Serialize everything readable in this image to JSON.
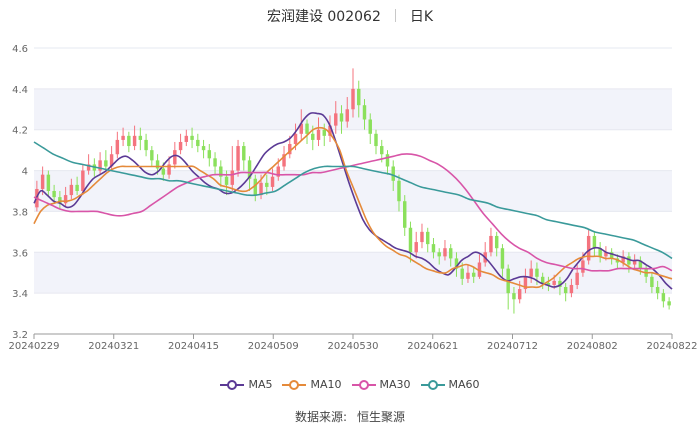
{
  "header": {
    "stock": "宏润建设 002062",
    "period": "日K"
  },
  "footer": {
    "source_label": "数据来源:",
    "source_name": "恒生聚源"
  },
  "colors": {
    "up": "#f4737e",
    "down": "#8be05c",
    "ma5": "#5b3a95",
    "ma10": "#e58a3a",
    "ma30": "#d855a8",
    "ma60": "#3a9a9a",
    "grid_band": "#f2f3fa",
    "axis": "#999999"
  },
  "chart_data": {
    "type": "candlestick",
    "x_ticks": [
      "20240229",
      "20240321",
      "20240415",
      "20240509",
      "20240530",
      "20240621",
      "20240712",
      "20240802",
      "20240822"
    ],
    "y_ticks": [
      3.2,
      3.4,
      3.6,
      3.8,
      4,
      4.2,
      4.4,
      4.6
    ],
    "ylim": [
      3.2,
      4.6
    ],
    "grid": true,
    "legend_position": "bottom",
    "candles": [
      [
        3.82,
        3.91,
        3.95,
        3.8
      ],
      [
        3.91,
        3.98,
        4.02,
        3.88
      ],
      [
        3.98,
        3.9,
        4.0,
        3.87
      ],
      [
        3.9,
        3.87,
        3.93,
        3.84
      ],
      [
        3.87,
        3.84,
        3.9,
        3.81
      ],
      [
        3.84,
        3.88,
        3.92,
        3.82
      ],
      [
        3.88,
        3.93,
        3.96,
        3.86
      ],
      [
        3.93,
        3.9,
        3.97,
        3.88
      ],
      [
        3.9,
        4.0,
        4.03,
        3.88
      ],
      [
        4.0,
        4.03,
        4.08,
        3.98
      ],
      [
        4.03,
        4.0,
        4.06,
        3.97
      ],
      [
        4.0,
        4.05,
        4.09,
        3.98
      ],
      [
        4.05,
        4.02,
        4.1,
        4.0
      ],
      [
        4.02,
        4.08,
        4.12,
        4.0
      ],
      [
        4.08,
        4.15,
        4.19,
        4.06
      ],
      [
        4.15,
        4.17,
        4.21,
        4.12
      ],
      [
        4.17,
        4.12,
        4.19,
        4.09
      ],
      [
        4.12,
        4.17,
        4.22,
        4.1
      ],
      [
        4.17,
        4.15,
        4.21,
        4.1
      ],
      [
        4.15,
        4.1,
        4.18,
        4.07
      ],
      [
        4.1,
        4.05,
        4.12,
        4.02
      ],
      [
        4.05,
        4.01,
        4.08,
        3.98
      ],
      [
        4.01,
        3.98,
        4.04,
        3.95
      ],
      [
        3.98,
        4.03,
        4.07,
        3.96
      ],
      [
        4.03,
        4.1,
        4.14,
        4.01
      ],
      [
        4.1,
        4.14,
        4.18,
        4.08
      ],
      [
        4.14,
        4.17,
        4.2,
        4.12
      ],
      [
        4.17,
        4.15,
        4.21,
        4.11
      ],
      [
        4.15,
        4.12,
        4.18,
        4.09
      ],
      [
        4.12,
        4.1,
        4.15,
        4.06
      ],
      [
        4.1,
        4.06,
        4.13,
        4.02
      ],
      [
        4.06,
        4.02,
        4.09,
        3.98
      ],
      [
        4.02,
        3.97,
        4.05,
        3.92
      ],
      [
        3.97,
        3.93,
        4.0,
        3.88
      ],
      [
        3.93,
        4.0,
        4.12,
        3.9
      ],
      [
        4.0,
        4.12,
        4.15,
        3.97
      ],
      [
        4.12,
        4.05,
        4.14,
        4.0
      ],
      [
        4.05,
        3.96,
        4.07,
        3.9
      ],
      [
        3.96,
        3.88,
        3.98,
        3.85
      ],
      [
        3.88,
        3.94,
        3.98,
        3.86
      ],
      [
        3.94,
        3.92,
        3.98,
        3.88
      ],
      [
        3.92,
        3.97,
        4.01,
        3.9
      ],
      [
        3.97,
        4.02,
        4.06,
        3.95
      ],
      [
        4.02,
        4.08,
        4.12,
        4.0
      ],
      [
        4.08,
        4.13,
        4.17,
        4.06
      ],
      [
        4.13,
        4.18,
        4.23,
        4.1
      ],
      [
        4.18,
        4.23,
        4.3,
        4.15
      ],
      [
        4.23,
        4.18,
        4.25,
        4.13
      ],
      [
        4.18,
        4.15,
        4.22,
        4.1
      ],
      [
        4.15,
        4.2,
        4.26,
        4.12
      ],
      [
        4.2,
        4.17,
        4.23,
        4.12
      ],
      [
        4.17,
        4.22,
        4.27,
        4.14
      ],
      [
        4.22,
        4.28,
        4.34,
        4.18
      ],
      [
        4.28,
        4.24,
        4.32,
        4.18
      ],
      [
        4.24,
        4.3,
        4.36,
        4.21
      ],
      [
        4.3,
        4.4,
        4.5,
        4.26
      ],
      [
        4.4,
        4.32,
        4.44,
        4.26
      ],
      [
        4.32,
        4.25,
        4.35,
        4.2
      ],
      [
        4.25,
        4.18,
        4.28,
        4.13
      ],
      [
        4.18,
        4.12,
        4.2,
        4.08
      ],
      [
        4.12,
        4.08,
        4.15,
        4.04
      ],
      [
        4.08,
        4.02,
        4.1,
        3.98
      ],
      [
        4.02,
        3.95,
        4.05,
        3.9
      ],
      [
        3.95,
        3.85,
        3.98,
        3.8
      ],
      [
        3.85,
        3.72,
        3.88,
        3.68
      ],
      [
        3.72,
        3.6,
        3.75,
        3.55
      ],
      [
        3.6,
        3.65,
        3.7,
        3.57
      ],
      [
        3.65,
        3.7,
        3.74,
        3.62
      ],
      [
        3.7,
        3.64,
        3.72,
        3.6
      ],
      [
        3.64,
        3.6,
        3.67,
        3.57
      ],
      [
        3.6,
        3.58,
        3.62,
        3.54
      ],
      [
        3.58,
        3.62,
        3.66,
        3.56
      ],
      [
        3.62,
        3.57,
        3.64,
        3.53
      ],
      [
        3.57,
        3.52,
        3.6,
        3.48
      ],
      [
        3.52,
        3.47,
        3.55,
        3.44
      ],
      [
        3.47,
        3.5,
        3.54,
        3.45
      ],
      [
        3.5,
        3.48,
        3.53,
        3.45
      ],
      [
        3.48,
        3.55,
        3.59,
        3.47
      ],
      [
        3.55,
        3.6,
        3.65,
        3.53
      ],
      [
        3.6,
        3.68,
        3.72,
        3.58
      ],
      [
        3.68,
        3.62,
        3.7,
        3.58
      ],
      [
        3.62,
        3.52,
        3.64,
        3.48
      ],
      [
        3.52,
        3.4,
        3.54,
        3.32
      ],
      [
        3.4,
        3.37,
        3.43,
        3.3
      ],
      [
        3.37,
        3.42,
        3.46,
        3.35
      ],
      [
        3.42,
        3.48,
        3.52,
        3.4
      ],
      [
        3.48,
        3.52,
        3.56,
        3.45
      ],
      [
        3.52,
        3.48,
        3.55,
        3.44
      ],
      [
        3.48,
        3.45,
        3.5,
        3.42
      ],
      [
        3.45,
        3.44,
        3.48,
        3.41
      ],
      [
        3.44,
        3.46,
        3.49,
        3.42
      ],
      [
        3.46,
        3.43,
        3.48,
        3.39
      ],
      [
        3.43,
        3.4,
        3.45,
        3.36
      ],
      [
        3.4,
        3.44,
        3.47,
        3.38
      ],
      [
        3.44,
        3.5,
        3.54,
        3.42
      ],
      [
        3.5,
        3.56,
        3.6,
        3.48
      ],
      [
        3.56,
        3.68,
        3.71,
        3.54
      ],
      [
        3.68,
        3.62,
        3.7,
        3.58
      ],
      [
        3.62,
        3.58,
        3.65,
        3.55
      ],
      [
        3.58,
        3.6,
        3.63,
        3.56
      ],
      [
        3.6,
        3.57,
        3.62,
        3.54
      ],
      [
        3.57,
        3.55,
        3.59,
        3.52
      ],
      [
        3.55,
        3.58,
        3.61,
        3.53
      ],
      [
        3.58,
        3.54,
        3.6,
        3.5
      ],
      [
        3.54,
        3.56,
        3.59,
        3.52
      ],
      [
        3.56,
        3.52,
        3.58,
        3.49
      ],
      [
        3.52,
        3.48,
        3.54,
        3.45
      ],
      [
        3.48,
        3.43,
        3.5,
        3.4
      ],
      [
        3.43,
        3.4,
        3.46,
        3.37
      ],
      [
        3.4,
        3.36,
        3.42,
        3.33
      ],
      [
        3.36,
        3.34,
        3.38,
        3.32
      ]
    ],
    "series": [
      {
        "name": "MA5",
        "values": [
          3.84,
          3.9,
          3.88,
          3.85,
          3.84,
          3.82,
          3.83,
          3.87,
          3.92,
          3.96,
          3.98,
          4.0,
          4.03,
          4.06,
          4.07,
          4.05,
          4.02,
          3.99,
          3.98,
          4.0,
          4.04,
          4.07,
          4.07,
          4.04,
          4.0,
          3.97,
          3.94,
          3.92,
          3.91,
          3.89,
          3.89,
          3.91,
          3.94,
          3.98,
          4.03,
          4.08,
          4.11,
          4.13,
          4.14,
          4.16,
          4.2,
          4.25,
          4.28,
          4.28,
          4.27,
          4.22,
          4.13,
          4.03,
          3.93,
          3.84,
          3.76,
          3.71,
          3.68,
          3.66,
          3.64,
          3.62,
          3.61,
          3.6,
          3.58,
          3.57,
          3.55,
          3.52,
          3.5,
          3.49,
          3.52,
          3.56,
          3.58,
          3.6,
          3.59,
          3.56,
          3.52,
          3.48,
          3.46,
          3.47,
          3.48,
          3.48,
          3.47,
          3.45,
          3.44,
          3.43,
          3.44,
          3.47,
          3.52,
          3.56,
          3.6,
          3.62,
          3.62,
          3.6,
          3.59,
          3.58,
          3.57,
          3.56,
          3.56,
          3.54,
          3.52,
          3.49,
          3.45,
          3.42
        ]
      },
      {
        "name": "MA10",
        "values": [
          3.74,
          3.8,
          3.83,
          3.84,
          3.85,
          3.85,
          3.86,
          3.88,
          3.9,
          3.93,
          3.96,
          3.99,
          4.01,
          4.02,
          4.02,
          4.02,
          4.02,
          4.02,
          4.02,
          4.02,
          4.02,
          4.02,
          4.02,
          4.02,
          4.02,
          4.0,
          3.98,
          3.96,
          3.93,
          3.92,
          3.91,
          3.9,
          3.9,
          3.92,
          3.95,
          3.99,
          4.02,
          4.05,
          4.08,
          4.11,
          4.14,
          4.17,
          4.2,
          4.21,
          4.2,
          4.16,
          4.1,
          4.0,
          3.92,
          3.84,
          3.76,
          3.7,
          3.66,
          3.63,
          3.61,
          3.59,
          3.58,
          3.56,
          3.54,
          3.52,
          3.51,
          3.5,
          3.5,
          3.52,
          3.53,
          3.54,
          3.53,
          3.51,
          3.5,
          3.49,
          3.47,
          3.46,
          3.45,
          3.44,
          3.43,
          3.43,
          3.43,
          3.45,
          3.47,
          3.5,
          3.53,
          3.55,
          3.57,
          3.58,
          3.58,
          3.58,
          3.57,
          3.57,
          3.56,
          3.54,
          3.52,
          3.51,
          3.5,
          3.5,
          3.49,
          3.48,
          3.47
        ]
      },
      {
        "name": "MA30",
        "values": [
          3.87,
          3.85,
          3.83,
          3.81,
          3.8,
          3.8,
          3.8,
          3.8,
          3.79,
          3.78,
          3.78,
          3.79,
          3.8,
          3.83,
          3.86,
          3.89,
          3.92,
          3.94,
          3.96,
          3.97,
          3.98,
          3.98,
          3.98,
          3.99,
          3.99,
          3.99,
          3.99,
          3.98,
          3.98,
          3.98,
          3.98,
          3.99,
          3.99,
          4.0,
          4.01,
          4.02,
          4.03,
          4.04,
          4.05,
          4.06,
          4.07,
          4.08,
          4.08,
          4.07,
          4.05,
          4.03,
          4.0,
          3.96,
          3.91,
          3.85,
          3.79,
          3.74,
          3.69,
          3.65,
          3.62,
          3.6,
          3.57,
          3.55,
          3.54,
          3.53,
          3.52,
          3.52,
          3.51,
          3.51,
          3.51,
          3.52,
          3.52,
          3.52,
          3.52,
          3.52,
          3.53,
          3.51
        ]
      },
      {
        "name": "MA60",
        "values": [
          4.14,
          4.11,
          4.08,
          4.06,
          4.04,
          4.03,
          4.02,
          4.01,
          4.0,
          3.99,
          3.98,
          3.97,
          3.96,
          3.96,
          3.95,
          3.95,
          3.94,
          3.93,
          3.92,
          3.91,
          3.9,
          3.89,
          3.88,
          3.88,
          3.89,
          3.9,
          3.93,
          3.96,
          3.99,
          4.01,
          4.02,
          4.02,
          4.02,
          4.02,
          4.01,
          4.0,
          3.99,
          3.98,
          3.96,
          3.94,
          3.92,
          3.91,
          3.9,
          3.89,
          3.88,
          3.86,
          3.85,
          3.84,
          3.82,
          3.81,
          3.8,
          3.79,
          3.78,
          3.76,
          3.75,
          3.74,
          3.73,
          3.72,
          3.7,
          3.69,
          3.68,
          3.67,
          3.66,
          3.64,
          3.62,
          3.6,
          3.57
        ]
      }
    ]
  }
}
